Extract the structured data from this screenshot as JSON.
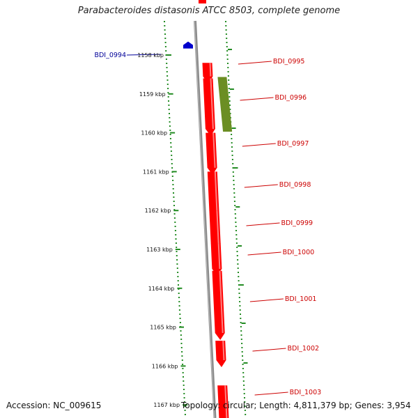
{
  "title": "Parabacteroides distasonis ATCC 8503, complete genome",
  "footer": {
    "accession": "Accession: NC_009615",
    "topology": "Topology: circular; Length: 4,811,379 bp; Genes: 3,954"
  },
  "ruler": {
    "unit": "kbp",
    "ticks": [
      "1158 kbp",
      "1159 kbp",
      "1160 kbp",
      "1161 kbp",
      "1162 kbp",
      "1163 kbp",
      "1164 kbp",
      "1165 kbp",
      "1166 kbp",
      "1167 kbp"
    ]
  },
  "colors": {
    "forward_gene": "#ff0000",
    "forward_gene_light": "#ff8080",
    "highlight_gene": "#6b8e23",
    "reverse_gene": "#0000cc",
    "label_forward": "#cc0000",
    "label_reverse": "#000099",
    "backbone": "#8c8c8c",
    "dotted_ring": "#228b22"
  },
  "genes": [
    {
      "name": "BDI_0994",
      "strand": "reverse",
      "start_kbp": 1157.85,
      "end_kbp": 1158.0
    },
    {
      "name": "BDI_0995",
      "strand": "forward",
      "start_kbp": 1158.2,
      "end_kbp": 1158.55
    },
    {
      "name": "BDI_0996",
      "strand": "forward",
      "start_kbp": 1158.6,
      "end_kbp": 1159.9
    },
    {
      "name": "BDI_0997",
      "strand": "forward",
      "start_kbp": 1160.0,
      "end_kbp": 1160.9
    },
    {
      "name": "BDI_0998",
      "strand": "forward",
      "start_kbp": 1161.0,
      "end_kbp": 1162.0
    },
    {
      "name": "BDI_0999",
      "strand": "forward",
      "start_kbp": 1162.0,
      "end_kbp": 1162.85
    },
    {
      "name": "BDI_1000",
      "strand": "forward",
      "start_kbp": 1162.85,
      "end_kbp": 1163.5
    },
    {
      "name": "BDI_1001",
      "strand": "forward",
      "start_kbp": 1163.55,
      "end_kbp": 1165.15
    },
    {
      "name": "BDI_1002",
      "strand": "forward",
      "start_kbp": 1165.35,
      "end_kbp": 1165.85
    },
    {
      "name": "BDI_1003",
      "strand": "forward",
      "start_kbp": 1166.5,
      "end_kbp": 1167.4
    }
  ]
}
